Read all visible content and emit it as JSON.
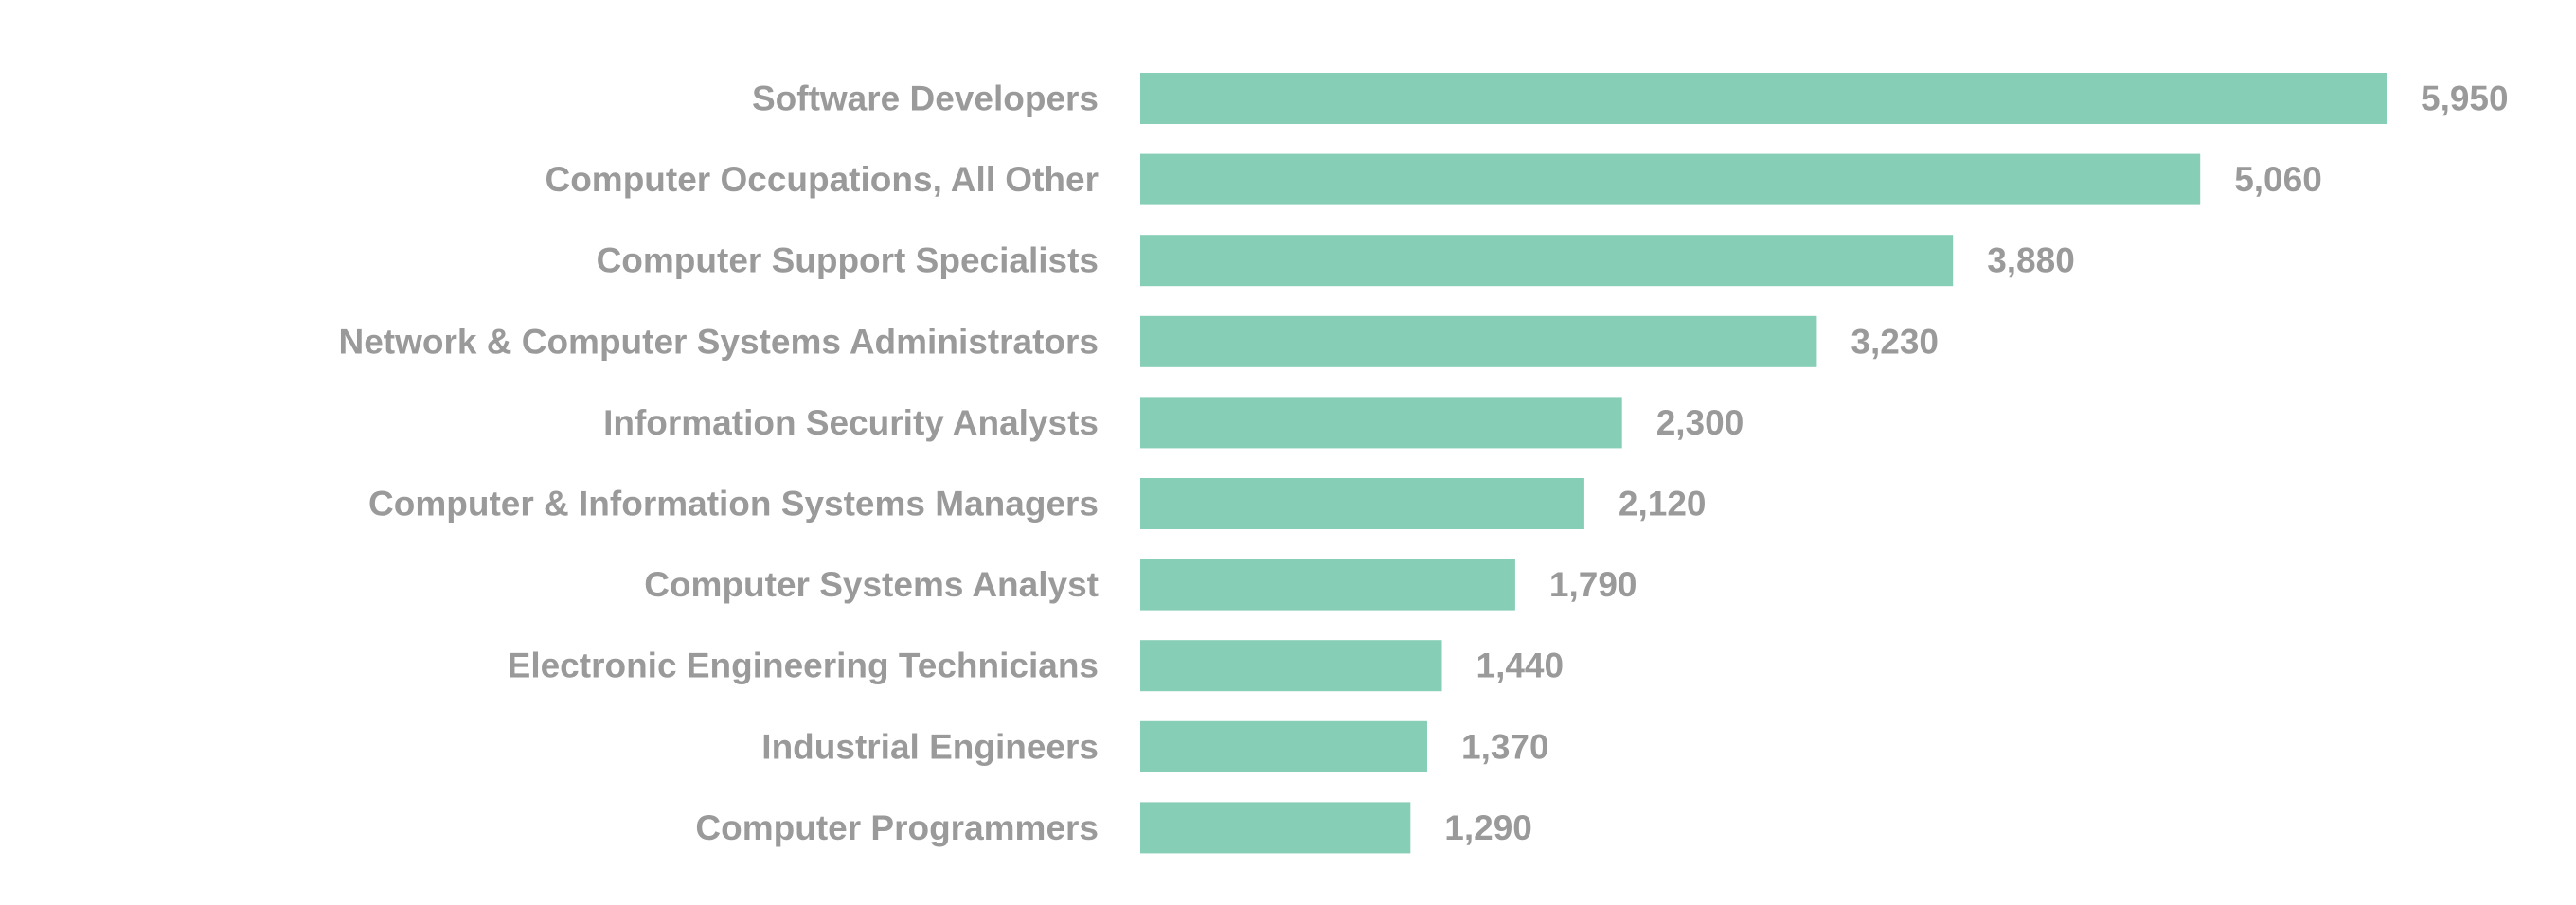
{
  "chart_data": {
    "type": "bar",
    "orientation": "horizontal",
    "title": "",
    "xlabel": "",
    "ylabel": "",
    "categories": [
      "Software Developers",
      "Computer Occupations, All Other",
      "Computer Support Specialists",
      "Network & Computer Systems Administrators",
      "Information Security Analysts",
      "Computer & Information Systems Managers",
      "Computer Systems Analyst",
      "Electronic Engineering Technicians",
      "Industrial Engineers",
      "Computer Programmers"
    ],
    "values": [
      5950,
      5060,
      3880,
      3230,
      2300,
      2120,
      1790,
      1440,
      1370,
      1290
    ],
    "value_labels": [
      "5,950",
      "5,060",
      "3,880",
      "3,230",
      "2,300",
      "2,120",
      "1,790",
      "1,440",
      "1,370",
      "1,290"
    ],
    "xlim": [
      0,
      5950
    ],
    "grid": false,
    "legend": "none",
    "colors": {
      "bar": "#87CEB6",
      "text": "#9a9a9a"
    }
  }
}
